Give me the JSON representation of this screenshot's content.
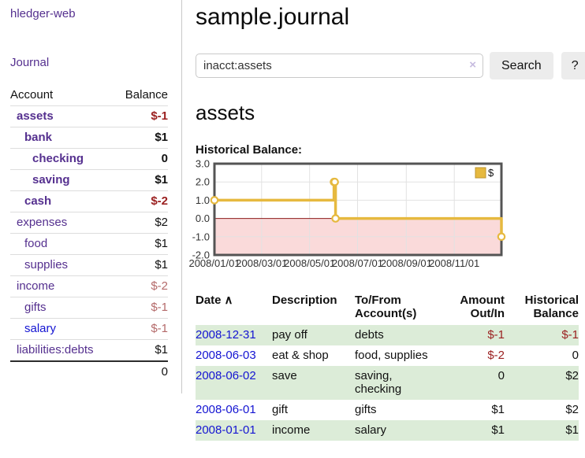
{
  "colors": {
    "link_purple": "#55308f",
    "link_blue": "#1414d2",
    "negative_strong": "#9b2121",
    "negative_muted": "#b46a6a",
    "row_stripe": "#dcecd8",
    "chart_gold": "#e6b93f"
  },
  "app": {
    "brand": "hledger-web",
    "nav_journal": "Journal"
  },
  "sidebar": {
    "table_headers": {
      "account": "Account",
      "balance": "Balance"
    },
    "accounts": [
      {
        "name": "assets",
        "balance": "$-1",
        "depth": 0,
        "bold": true,
        "balance_style": "negative-strong"
      },
      {
        "name": "bank",
        "balance": "$1",
        "depth": 1,
        "bold": true,
        "balance_style": ""
      },
      {
        "name": "checking",
        "balance": "0",
        "depth": 2,
        "bold": true,
        "balance_style": ""
      },
      {
        "name": "saving",
        "balance": "$1",
        "depth": 2,
        "bold": true,
        "balance_style": ""
      },
      {
        "name": "cash",
        "balance": "$-2",
        "depth": 1,
        "bold": true,
        "balance_style": "negative-strong"
      },
      {
        "name": "expenses",
        "balance": "$2",
        "depth": 0,
        "bold": false,
        "balance_style": ""
      },
      {
        "name": "food",
        "balance": "$1",
        "depth": 1,
        "bold": false,
        "balance_style": ""
      },
      {
        "name": "supplies",
        "balance": "$1",
        "depth": 1,
        "bold": false,
        "balance_style": ""
      },
      {
        "name": "income",
        "balance": "$-2",
        "depth": 0,
        "bold": false,
        "balance_style": "negative-muted"
      },
      {
        "name": "gifts",
        "balance": "$-1",
        "depth": 1,
        "bold": false,
        "balance_style": "negative-muted"
      },
      {
        "name": "salary",
        "balance": "$-1",
        "depth": 1,
        "bold": false,
        "balance_style": "negative-muted",
        "link_style": "unvisited"
      },
      {
        "name": "liabilities:debts",
        "balance": "$1",
        "depth": 0,
        "bold": false,
        "balance_style": ""
      }
    ],
    "total": "0"
  },
  "header": {
    "title": "sample.journal"
  },
  "search": {
    "value": "inacct:assets",
    "clear_icon": "×",
    "search_label": "Search",
    "help_label": "?"
  },
  "account_page": {
    "heading": "assets",
    "chart_label": "Historical Balance:"
  },
  "chart_data": {
    "type": "line",
    "title": "Historical Balance",
    "step": "after",
    "series": [
      {
        "name": "$",
        "color": "#e6b93f",
        "marker_fill": "#ffffff",
        "legend_square_border": "#bd952f",
        "points": [
          [
            "2008-01-01",
            1
          ],
          [
            "2008-06-01",
            2
          ],
          [
            "2008-06-02",
            2
          ],
          [
            "2008-06-03",
            0
          ],
          [
            "2008-12-31",
            -1
          ]
        ]
      }
    ],
    "x_ticks": [
      "2008/01/01",
      "2008/03/01",
      "2008/05/01",
      "2008/07/01",
      "2008/09/01",
      "2008/11/01"
    ],
    "y_ticks": [
      "3.0",
      "2.0",
      "1.0",
      "0.0",
      "-1.0",
      "-2.0"
    ],
    "xlim": [
      "2008-01-01",
      "2008-12-31"
    ],
    "ylim": [
      -2,
      3
    ],
    "grid": true,
    "negative_region_color": "#fadada",
    "zero_line_color": "#8b1a1a",
    "legend": {
      "label": "$",
      "position": "top-right"
    }
  },
  "register": {
    "headers": {
      "date": "Date",
      "description": "Description",
      "accounts": "To/From Account(s)",
      "amount": "Amount Out/In",
      "balance": "Historical Balance"
    },
    "sort_indicator": "∧",
    "rows": [
      {
        "date": "2008-12-31",
        "description": "pay off",
        "accounts": "debts",
        "amount": "$-1",
        "balance": "$-1"
      },
      {
        "date": "2008-06-03",
        "description": "eat & shop",
        "accounts": "food, supplies",
        "amount": "$-2",
        "balance": "0"
      },
      {
        "date": "2008-06-02",
        "description": "save",
        "accounts": "saving, checking",
        "amount": "0",
        "balance": "$2"
      },
      {
        "date": "2008-06-01",
        "description": "gift",
        "accounts": "gifts",
        "amount": "$1",
        "balance": "$2"
      },
      {
        "date": "2008-01-01",
        "description": "income",
        "accounts": "salary",
        "amount": "$1",
        "balance": "$1"
      }
    ]
  }
}
